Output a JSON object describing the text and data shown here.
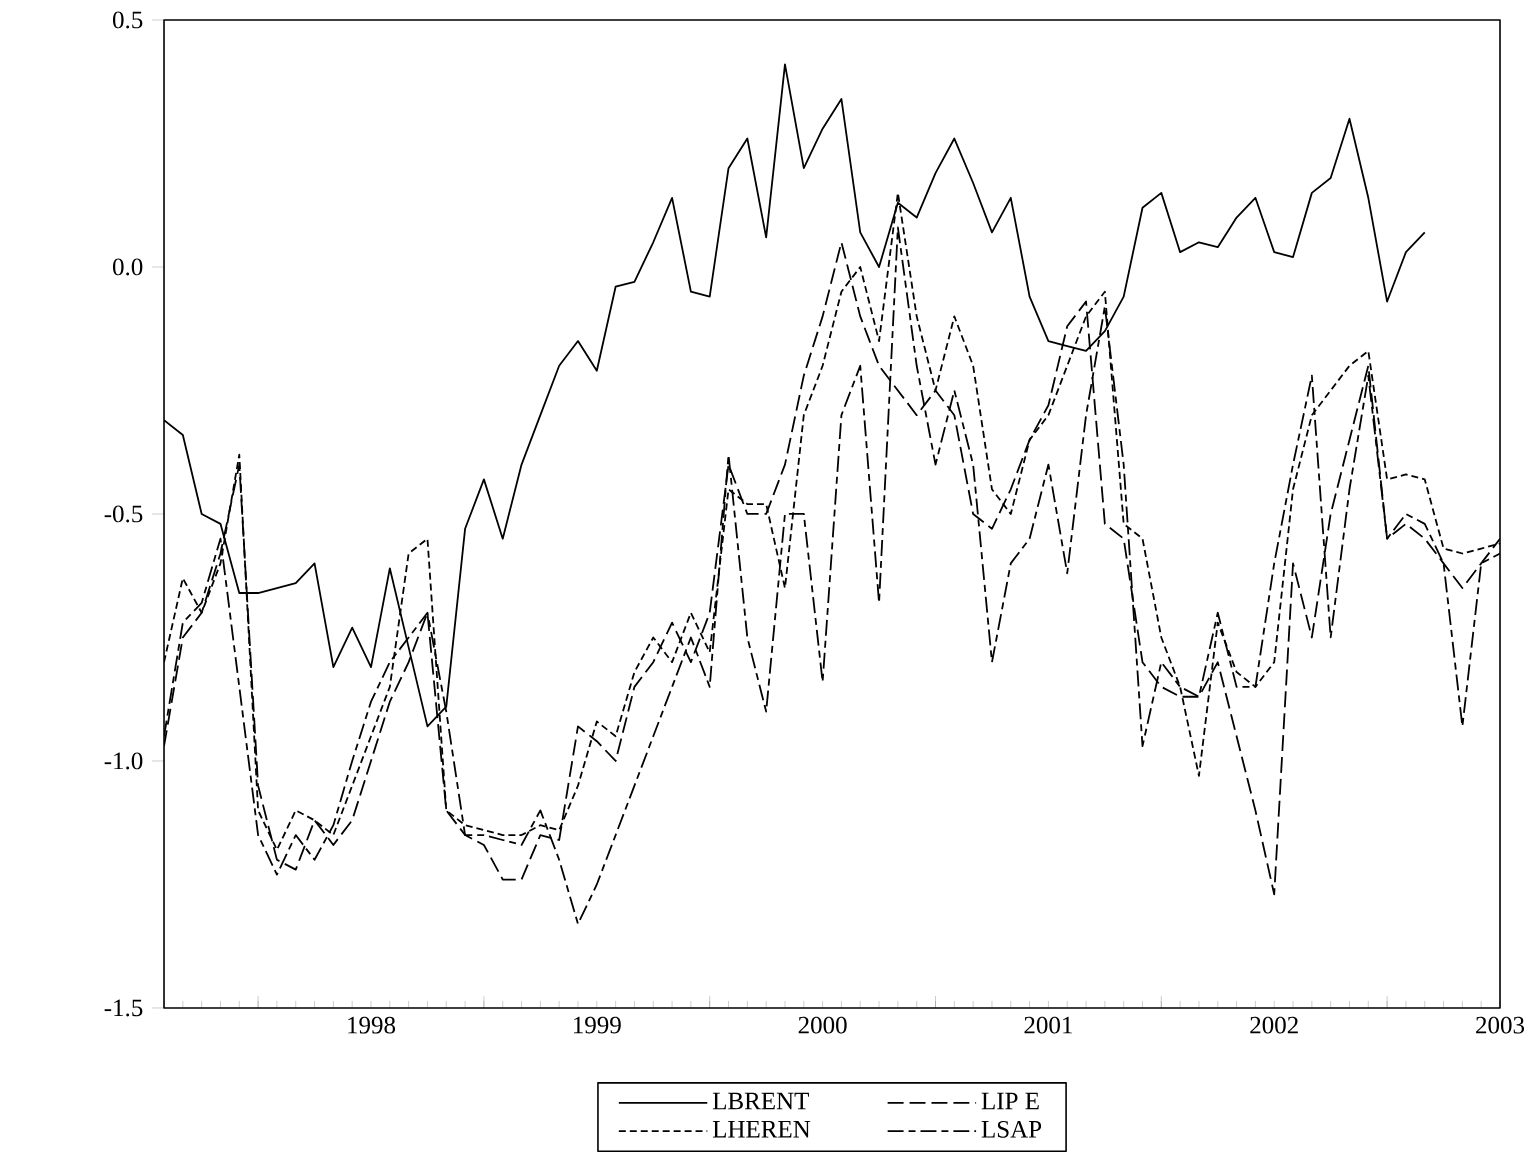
{
  "chart_data": {
    "type": "line",
    "x": [
      "1997-08",
      "1997-09",
      "1997-10",
      "1997-11",
      "1997-12",
      "1998-01",
      "1998-02",
      "1998-03",
      "1998-04",
      "1998-05",
      "1998-06",
      "1998-07",
      "1998-08",
      "1998-09",
      "1998-10",
      "1998-11",
      "1998-12",
      "1999-01",
      "1999-02",
      "1999-03",
      "1999-04",
      "1999-05",
      "1999-06",
      "1999-07",
      "1999-08",
      "1999-09",
      "1999-10",
      "1999-11",
      "1999-12",
      "2000-01",
      "2000-02",
      "2000-03",
      "2000-04",
      "2000-05",
      "2000-06",
      "2000-07",
      "2000-08",
      "2000-09",
      "2000-10",
      "2000-11",
      "2000-12",
      "2001-01",
      "2001-02",
      "2001-03",
      "2001-04",
      "2001-05",
      "2001-06",
      "2001-07",
      "2001-08",
      "2001-09",
      "2001-10",
      "2001-11",
      "2001-12",
      "2002-01",
      "2002-02",
      "2002-03",
      "2002-04",
      "2002-05",
      "2002-06",
      "2002-07",
      "2002-08",
      "2002-09",
      "2002-10",
      "2002-11",
      "2002-12",
      "2003-01",
      "2003-02",
      "2003-03",
      "2003-04",
      "2003-05",
      "2003-06",
      "2003-07"
    ],
    "series": [
      {
        "name": "LBRENT",
        "color": "#000000",
        "line_style": "solid",
        "values": [
          -0.31,
          -0.34,
          -0.5,
          -0.52,
          -0.66,
          -0.66,
          -0.65,
          -0.64,
          -0.6,
          -0.81,
          -0.73,
          -0.81,
          -0.61,
          -0.77,
          -0.93,
          -0.89,
          -0.53,
          -0.43,
          -0.55,
          -0.4,
          -0.3,
          -0.2,
          -0.15,
          -0.21,
          -0.04,
          -0.03,
          0.05,
          0.14,
          -0.05,
          -0.06,
          0.2,
          0.26,
          0.06,
          0.41,
          0.2,
          0.28,
          0.34,
          0.07,
          0.0,
          0.13,
          0.1,
          0.19,
          0.26,
          0.17,
          0.07,
          0.14,
          -0.06,
          -0.15,
          -0.16,
          -0.17,
          -0.13,
          -0.06,
          0.12,
          0.15,
          0.03,
          0.05,
          0.04,
          0.1,
          0.14,
          0.03,
          0.02,
          0.15,
          0.18,
          0.3,
          0.14,
          -0.07,
          0.03,
          0.07,
          null,
          null,
          null,
          null
        ]
      },
      {
        "name": "LIP E",
        "color": "#000000",
        "line_style": "dashed",
        "values": [
          -0.97,
          -0.75,
          -0.7,
          -0.58,
          -0.4,
          -1.05,
          -1.2,
          -1.22,
          -1.12,
          -1.17,
          -1.12,
          -1.0,
          -0.88,
          -0.8,
          -0.7,
          -1.1,
          -1.15,
          -1.17,
          -1.24,
          -1.24,
          -1.15,
          -1.16,
          -0.93,
          -0.96,
          -1.0,
          -0.85,
          -0.8,
          -0.72,
          -0.8,
          -0.7,
          -0.4,
          -0.5,
          -0.5,
          -0.4,
          -0.22,
          -0.1,
          0.05,
          -0.1,
          -0.2,
          -0.25,
          -0.3,
          -0.25,
          -0.3,
          -0.5,
          -0.53,
          -0.45,
          -0.35,
          -0.28,
          -0.12,
          -0.07,
          -0.52,
          -0.55,
          -0.8,
          -0.85,
          -0.87,
          -0.87,
          -0.8,
          -0.95,
          -1.1,
          -1.27,
          -0.6,
          -0.75,
          -0.5,
          -0.35,
          -0.2,
          -0.55,
          -0.52,
          -0.55,
          -0.6,
          -0.65,
          -0.6,
          -0.55
        ]
      },
      {
        "name": "LHEREN",
        "color": "#000000",
        "line_style": "dashed",
        "values": [
          -0.8,
          -0.63,
          -0.7,
          -0.6,
          -0.38,
          -1.1,
          -1.18,
          -1.1,
          -1.12,
          -1.15,
          -1.05,
          -0.95,
          -0.85,
          -0.58,
          -0.55,
          -1.1,
          -1.13,
          -1.14,
          -1.15,
          -1.15,
          -1.13,
          -1.14,
          -1.05,
          -0.92,
          -0.95,
          -0.82,
          -0.75,
          -0.8,
          -0.7,
          -0.78,
          -0.45,
          -0.48,
          -0.48,
          -0.65,
          -0.3,
          -0.2,
          -0.05,
          0.0,
          -0.15,
          0.15,
          -0.1,
          -0.25,
          -0.1,
          -0.2,
          -0.45,
          -0.5,
          -0.35,
          -0.3,
          -0.2,
          -0.1,
          -0.05,
          -0.52,
          -0.55,
          -0.75,
          -0.85,
          -1.03,
          -0.72,
          -0.82,
          -0.85,
          -0.8,
          -0.45,
          -0.3,
          -0.25,
          -0.2,
          -0.17,
          -0.43,
          -0.42,
          -0.43,
          -0.57,
          -0.58,
          -0.57,
          -0.56
        ]
      },
      {
        "name": "LSAP",
        "color": "#000000",
        "line_style": "dashed",
        "values": [
          -0.95,
          -0.72,
          -0.68,
          -0.55,
          -0.85,
          -1.15,
          -1.23,
          -1.15,
          -1.2,
          -1.13,
          -1.0,
          -0.88,
          -0.8,
          -0.75,
          -0.7,
          -0.9,
          -1.15,
          -1.15,
          -1.16,
          -1.17,
          -1.1,
          -1.2,
          -1.33,
          -1.25,
          -1.15,
          -1.05,
          -0.95,
          -0.85,
          -0.75,
          -0.85,
          -0.38,
          -0.75,
          -0.9,
          -0.5,
          -0.5,
          -0.84,
          -0.3,
          -0.2,
          -0.68,
          0.08,
          -0.2,
          -0.4,
          -0.25,
          -0.4,
          -0.8,
          -0.6,
          -0.55,
          -0.4,
          -0.62,
          -0.3,
          -0.08,
          -0.4,
          -0.97,
          -0.8,
          -0.85,
          -0.87,
          -0.7,
          -0.85,
          -0.85,
          -0.6,
          -0.4,
          -0.22,
          -0.75,
          -0.45,
          -0.22,
          -0.55,
          -0.5,
          -0.52,
          -0.6,
          -0.93,
          -0.6,
          -0.58
        ]
      }
    ],
    "xlim": [
      "1997-08",
      "2003-07"
    ],
    "xticks": [
      {
        "value": "1998-01",
        "label": null
      },
      {
        "value": "1999-01",
        "label": null
      },
      {
        "value": "2000-01",
        "label": null
      },
      {
        "value": "2001-01",
        "label": null
      },
      {
        "value": "2002-01",
        "label": null
      },
      {
        "value": "2003-01",
        "label": null
      },
      {
        "value": "1998-07",
        "label": "1998"
      },
      {
        "value": "1999-07",
        "label": "1999"
      },
      {
        "value": "2000-07",
        "label": "2000"
      },
      {
        "value": "2001-07",
        "label": "2001"
      },
      {
        "value": "2002-07",
        "label": "2002"
      },
      {
        "value": "2003-07",
        "label": "2003"
      }
    ],
    "ylim": [
      -1.5,
      0.5
    ],
    "yticks": [
      0.5,
      {
        "value": 0,
        "label": "0.0"
      },
      -0.5,
      {
        "value": -1,
        "label": "-1.0"
      },
      -1.5
    ],
    "grid": false,
    "legend": "bottom",
    "marker": "none"
  }
}
